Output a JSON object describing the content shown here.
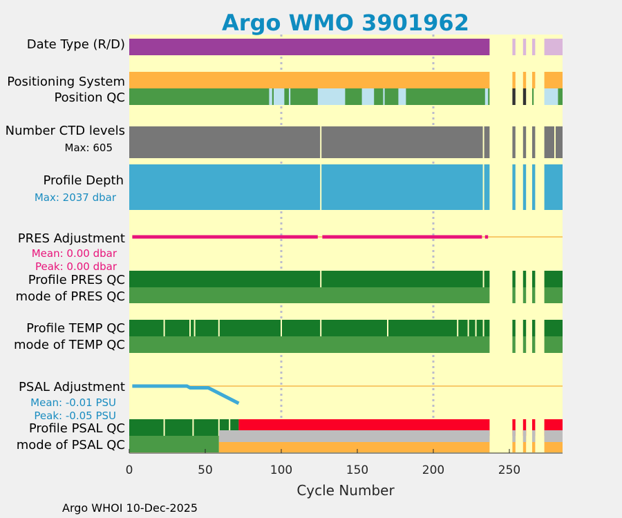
{
  "colors": {
    "figure_bg": "#f0f0f0",
    "plot_bg": "#ffffc0",
    "title": "#0f8cc0",
    "purple": "#9b3f9b",
    "light_purple": "#dab6da",
    "orange": "#ffb342",
    "green_mid": "#4a9a46",
    "light_blue": "#bde2ef",
    "black_gray": "#333333",
    "dark_gray": "#777777",
    "sky": "#42acd0",
    "magenta": "#e8137a",
    "dark_green": "#167a29",
    "steel_blue": "#3eaad6",
    "red": "#fb0026",
    "silver": "#bdbdbd",
    "adj_line": "#f5b84a",
    "grid": "#bbbbcc",
    "text": "#000000",
    "pres_stats": "#e8137a",
    "psal_stats": "#1a8cc0",
    "maxdepth": "#1a8cc0"
  },
  "chart_data": {
    "type": "bar",
    "title": "Argo WMO 3901962",
    "xlabel": "Cycle Number",
    "xlim": [
      0,
      285
    ],
    "xticks": [
      0,
      50,
      100,
      150,
      200,
      250
    ],
    "xtick_labels": [
      "0",
      "50",
      "100",
      "150",
      "200",
      "250"
    ],
    "gridlines_x": [
      100,
      200
    ],
    "footer": "Argo WHOI 10-Dec-2025",
    "rows": {
      "date_type": {
        "label": "Date Type (R/D)",
        "segments": [
          {
            "start": 0,
            "end": 237,
            "color": "purple"
          },
          {
            "start": 252,
            "end": 254,
            "color": "light_purple"
          },
          {
            "start": 259,
            "end": 261,
            "color": "light_purple"
          },
          {
            "start": 265,
            "end": 267,
            "color": "light_purple"
          },
          {
            "start": 273,
            "end": 285,
            "color": "light_purple"
          }
        ]
      },
      "positioning_system": {
        "label": "Positioning System",
        "segments": [
          {
            "start": 0,
            "end": 237,
            "color": "orange"
          },
          {
            "start": 252,
            "end": 254,
            "color": "orange"
          },
          {
            "start": 259,
            "end": 261,
            "color": "orange"
          },
          {
            "start": 265,
            "end": 267,
            "color": "orange"
          },
          {
            "start": 273,
            "end": 285,
            "color": "orange"
          }
        ]
      },
      "position_qc": {
        "label": "Position QC",
        "segments": [
          {
            "start": 0,
            "end": 237,
            "color": "green_mid"
          },
          {
            "start": 92,
            "end": 94,
            "color": "light_blue"
          },
          {
            "start": 95,
            "end": 102,
            "color": "light_blue"
          },
          {
            "start": 105,
            "end": 106,
            "color": "light_blue"
          },
          {
            "start": 124,
            "end": 142,
            "color": "light_blue"
          },
          {
            "start": 153,
            "end": 161,
            "color": "light_blue"
          },
          {
            "start": 167,
            "end": 168,
            "color": "light_blue"
          },
          {
            "start": 177,
            "end": 182,
            "color": "light_blue"
          },
          {
            "start": 234,
            "end": 236,
            "color": "light_blue"
          },
          {
            "start": 252,
            "end": 254,
            "color": "black_gray"
          },
          {
            "start": 259,
            "end": 261,
            "color": "black_gray"
          },
          {
            "start": 265,
            "end": 266,
            "color": "green_mid"
          },
          {
            "start": 273,
            "end": 282,
            "color": "light_blue"
          },
          {
            "start": 282,
            "end": 285,
            "color": "green_mid"
          }
        ]
      },
      "number_ctd_levels": {
        "label": "Number CTD levels",
        "max_label": "Max: 605",
        "segments": [
          {
            "start": 0,
            "end": 237,
            "color": "dark_gray"
          },
          {
            "start": 252,
            "end": 254,
            "color": "dark_gray"
          },
          {
            "start": 259,
            "end": 261,
            "color": "dark_gray"
          },
          {
            "start": 265,
            "end": 267,
            "color": "dark_gray"
          },
          {
            "start": 273,
            "end": 285,
            "color": "dark_gray"
          }
        ],
        "gaps": [
          126,
          233,
          280
        ]
      },
      "profile_depth": {
        "label": "Profile Depth",
        "max_label": "Max: 2037 dbar",
        "segments": [
          {
            "start": 0,
            "end": 237,
            "color": "sky"
          },
          {
            "start": 252,
            "end": 254,
            "color": "sky"
          },
          {
            "start": 259,
            "end": 261,
            "color": "sky"
          },
          {
            "start": 265,
            "end": 267,
            "color": "sky"
          },
          {
            "start": 273,
            "end": 285,
            "color": "sky"
          }
        ],
        "gaps": [
          126,
          233
        ]
      },
      "pres_adjustment": {
        "label": "PRES Adjustment",
        "mean_label": "Mean: 0.00 dbar",
        "peak_label": "Peak: 0.00 dbar",
        "segments": [
          {
            "start": 2,
            "end": 124,
            "value": 0
          },
          {
            "start": 127,
            "end": 232,
            "value": 0
          },
          {
            "start": 234,
            "end": 236,
            "value": 0
          }
        ],
        "zero_line_end": 285
      },
      "profile_pres_qc": {
        "label": "Profile PRES QC",
        "segments": [
          {
            "start": 0,
            "end": 237,
            "color": "dark_green"
          },
          {
            "start": 252,
            "end": 254,
            "color": "dark_green"
          },
          {
            "start": 259,
            "end": 261,
            "color": "dark_green"
          },
          {
            "start": 265,
            "end": 267,
            "color": "dark_green"
          },
          {
            "start": 273,
            "end": 285,
            "color": "dark_green"
          }
        ],
        "gaps": [
          126,
          233
        ]
      },
      "mode_of_pres_qc": {
        "label": "mode of PRES QC",
        "segments": [
          {
            "start": 0,
            "end": 237,
            "color": "green_mid"
          },
          {
            "start": 252,
            "end": 254,
            "color": "green_mid"
          },
          {
            "start": 259,
            "end": 261,
            "color": "green_mid"
          },
          {
            "start": 265,
            "end": 267,
            "color": "green_mid"
          },
          {
            "start": 273,
            "end": 285,
            "color": "green_mid"
          }
        ]
      },
      "profile_temp_qc": {
        "label": "Profile TEMP QC",
        "segments": [
          {
            "start": 0,
            "end": 237,
            "color": "dark_green"
          },
          {
            "start": 252,
            "end": 254,
            "color": "dark_green"
          },
          {
            "start": 259,
            "end": 261,
            "color": "dark_green"
          },
          {
            "start": 265,
            "end": 267,
            "color": "dark_green"
          },
          {
            "start": 273,
            "end": 285,
            "color": "dark_green"
          }
        ],
        "gaps": [
          23,
          40,
          43,
          59,
          100,
          126,
          170,
          216,
          223,
          228,
          233
        ]
      },
      "mode_of_temp_qc": {
        "label": "mode of TEMP QC",
        "segments": [
          {
            "start": 0,
            "end": 237,
            "color": "green_mid"
          },
          {
            "start": 252,
            "end": 254,
            "color": "green_mid"
          },
          {
            "start": 259,
            "end": 261,
            "color": "green_mid"
          },
          {
            "start": 265,
            "end": 267,
            "color": "green_mid"
          },
          {
            "start": 273,
            "end": 285,
            "color": "green_mid"
          }
        ]
      },
      "psal_adjustment": {
        "label": "PSAL Adjustment",
        "mean_label": "Mean: -0.01 PSU",
        "peak_label": "Peak: -0.05 PSU",
        "x": [
          2,
          38,
          40,
          52,
          72
        ],
        "y": [
          0,
          0,
          -0.005,
          -0.005,
          -0.05
        ],
        "ylim": [
          -0.05,
          0
        ],
        "zero_line_end": 285
      },
      "profile_psal_qc": {
        "label": "Profile PSAL QC",
        "segments": [
          {
            "start": 0,
            "end": 72,
            "color": "dark_green"
          },
          {
            "start": 72,
            "end": 237,
            "color": "red"
          },
          {
            "start": 252,
            "end": 254,
            "color": "red"
          },
          {
            "start": 259,
            "end": 261,
            "color": "red"
          },
          {
            "start": 265,
            "end": 267,
            "color": "red"
          },
          {
            "start": 273,
            "end": 285,
            "color": "red"
          }
        ],
        "gaps": [
          23,
          42,
          59,
          66
        ]
      },
      "mode_of_psal_qc": {
        "label": "mode of PSAL QC",
        "segments": [
          {
            "start": 0,
            "end": 59,
            "color": "green_mid"
          },
          {
            "start": 59,
            "end": 237,
            "color": "orange"
          },
          {
            "start": 252,
            "end": 254,
            "color": "orange"
          },
          {
            "start": 259,
            "end": 261,
            "color": "orange"
          },
          {
            "start": 265,
            "end": 267,
            "color": "orange"
          },
          {
            "start": 273,
            "end": 285,
            "color": "orange"
          }
        ],
        "overlay_segments": [
          {
            "start": 59,
            "end": 237,
            "color": "silver"
          },
          {
            "start": 252,
            "end": 254,
            "color": "silver"
          },
          {
            "start": 259,
            "end": 261,
            "color": "silver"
          },
          {
            "start": 265,
            "end": 267,
            "color": "silver"
          },
          {
            "start": 273,
            "end": 285,
            "color": "silver"
          }
        ]
      }
    }
  }
}
